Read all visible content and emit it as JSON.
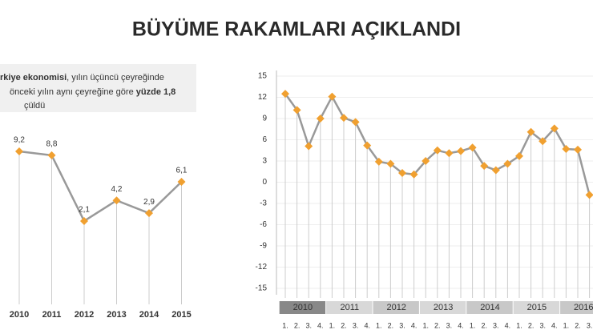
{
  "title": "BÜYÜME RAKAMLARI AÇIKLANDI",
  "note": {
    "line1": [
      {
        "text": "rkiye ekonomisi",
        "bold": true
      },
      {
        "text": ", yılın üçüncü çeyreğinde",
        "bold": false
      }
    ],
    "line2": [
      {
        "text": "önceki yılın aynı çeyreğine göre ",
        "bold": false
      },
      {
        "text": "yüzde 1,8",
        "bold": true
      }
    ],
    "line3": [
      {
        "text": "çüldü",
        "bold": false
      }
    ]
  },
  "chart_data": [
    {
      "type": "line",
      "categories": [
        "2010",
        "2011",
        "2012",
        "2013",
        "2014",
        "2015"
      ],
      "values": [
        9.2,
        8.8,
        2.1,
        4.2,
        2.9,
        6.1
      ],
      "value_labels": [
        "9,2",
        "8,8",
        "2,1",
        "4,2",
        "2,9",
        "6,1"
      ],
      "color": "#f0a030",
      "line_color": "#999999"
    },
    {
      "type": "line",
      "categories": [
        "1.",
        "2.",
        "3.",
        "4.",
        "1.",
        "2.",
        "3.",
        "4.",
        "1.",
        "2.",
        "3.",
        "4.",
        "1.",
        "2.",
        "3.",
        "4.",
        "1.",
        "2.",
        "3.",
        "4.",
        "1.",
        "2.",
        "3.",
        "4.",
        "1.",
        "2.",
        "3."
      ],
      "year_groups": [
        "2010",
        "2011",
        "2012",
        "2013",
        "2014",
        "2015",
        "2016"
      ],
      "values": [
        12.5,
        10.2,
        5.1,
        9.0,
        12.1,
        9.1,
        8.5,
        5.2,
        2.9,
        2.6,
        1.3,
        1.1,
        3.0,
        4.5,
        4.1,
        4.4,
        4.9,
        2.3,
        1.7,
        2.6,
        3.7,
        7.1,
        5.8,
        7.6,
        4.7,
        4.6,
        -1.8
      ],
      "ylim": [
        -15,
        15
      ],
      "yticks": [
        15,
        12,
        9,
        6,
        3,
        0,
        -3,
        -6,
        -9,
        -12,
        -15
      ],
      "color": "#f0a030",
      "line_color": "#999999"
    }
  ]
}
